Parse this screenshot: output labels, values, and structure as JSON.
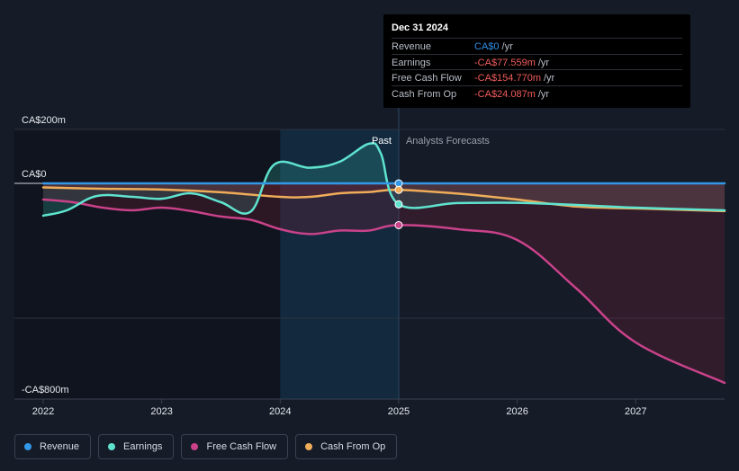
{
  "tooltip": {
    "date": "Dec 31 2024",
    "rows": [
      {
        "label": "Revenue",
        "value": "CA$0",
        "unit": "/yr",
        "color": "#2f8fe8"
      },
      {
        "label": "Earnings",
        "value": "-CA$77.559m",
        "unit": "/yr",
        "color": "#f25c5c"
      },
      {
        "label": "Free Cash Flow",
        "value": "-CA$154.770m",
        "unit": "/yr",
        "color": "#f25c5c"
      },
      {
        "label": "Cash From Op",
        "value": "-CA$24.087m",
        "unit": "/yr",
        "color": "#f25c5c"
      }
    ]
  },
  "regions": {
    "past_label": "Past",
    "forecast_label": "Analysts Forecasts"
  },
  "legend": [
    {
      "label": "Revenue",
      "color": "#3498e8"
    },
    {
      "label": "Earnings",
      "color": "#5fe3cf"
    },
    {
      "label": "Free Cash Flow",
      "color": "#c9428a"
    },
    {
      "label": "Cash From Op",
      "color": "#efad5a"
    }
  ],
  "chart_data": {
    "type": "line",
    "y_tick_labels": [
      "CA$200m",
      "CA$0",
      "-CA$800m"
    ],
    "x_tick_labels": [
      "2022",
      "2023",
      "2024",
      "2025",
      "2026",
      "2027"
    ],
    "ylim": [
      -800,
      200
    ],
    "xlim": [
      2022.0,
      2027.75
    ],
    "highlight_range": [
      2024.0,
      2025.0
    ],
    "current_x": 2025.0,
    "series": [
      {
        "name": "Revenue",
        "color": "#3498e8",
        "points": [
          [
            2022.0,
            0
          ],
          [
            2023.0,
            0
          ],
          [
            2024.0,
            0
          ],
          [
            2025.0,
            0
          ],
          [
            2026.0,
            0
          ],
          [
            2027.0,
            0
          ],
          [
            2027.75,
            0
          ]
        ],
        "marker": [
          2025.0,
          0
        ]
      },
      {
        "name": "Earnings",
        "color": "#5fe3cf",
        "points": [
          [
            2022.0,
            -120
          ],
          [
            2022.2,
            -100
          ],
          [
            2022.45,
            -47
          ],
          [
            2022.75,
            -50
          ],
          [
            2023.0,
            -57
          ],
          [
            2023.25,
            -37
          ],
          [
            2023.5,
            -70
          ],
          [
            2023.75,
            -105
          ],
          [
            2023.95,
            70
          ],
          [
            2024.25,
            58
          ],
          [
            2024.5,
            80
          ],
          [
            2024.75,
            147
          ],
          [
            2024.85,
            110
          ],
          [
            2025.0,
            -77.6
          ],
          [
            2025.5,
            -73
          ],
          [
            2026.0,
            -72
          ],
          [
            2026.5,
            -80
          ],
          [
            2027.0,
            -90
          ],
          [
            2027.75,
            -100
          ]
        ],
        "marker": [
          2025.0,
          -77.6
        ]
      },
      {
        "name": "Free Cash Flow",
        "color": "#c9428a",
        "points": [
          [
            2022.0,
            -60
          ],
          [
            2022.25,
            -70
          ],
          [
            2022.5,
            -90
          ],
          [
            2022.75,
            -100
          ],
          [
            2023.0,
            -90
          ],
          [
            2023.25,
            -103
          ],
          [
            2023.5,
            -123
          ],
          [
            2023.75,
            -135
          ],
          [
            2024.0,
            -170
          ],
          [
            2024.25,
            -188
          ],
          [
            2024.5,
            -175
          ],
          [
            2024.75,
            -175
          ],
          [
            2025.0,
            -154.8
          ],
          [
            2025.5,
            -170
          ],
          [
            2026.0,
            -210
          ],
          [
            2026.5,
            -390
          ],
          [
            2027.0,
            -590
          ],
          [
            2027.75,
            -740
          ]
        ],
        "marker": [
          2025.0,
          -154.8
        ]
      },
      {
        "name": "Cash From Op",
        "color": "#efad5a",
        "points": [
          [
            2022.0,
            -15
          ],
          [
            2022.5,
            -20
          ],
          [
            2023.0,
            -23
          ],
          [
            2023.5,
            -33
          ],
          [
            2024.0,
            -50
          ],
          [
            2024.25,
            -50
          ],
          [
            2024.5,
            -37
          ],
          [
            2024.75,
            -32
          ],
          [
            2025.0,
            -24.1
          ],
          [
            2025.5,
            -38
          ],
          [
            2026.0,
            -60
          ],
          [
            2026.5,
            -86
          ],
          [
            2027.0,
            -93
          ],
          [
            2027.75,
            -103
          ]
        ],
        "marker": [
          2025.0,
          -24.1
        ]
      }
    ]
  }
}
